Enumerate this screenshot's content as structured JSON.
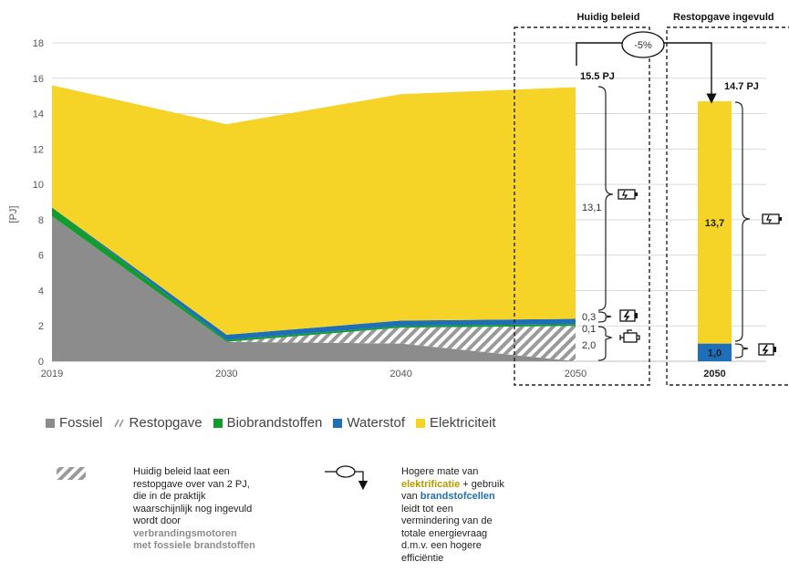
{
  "chart_data": {
    "type": "area",
    "title": "",
    "xlabel": "",
    "ylabel": "[PJ]",
    "ylim": [
      0,
      18
    ],
    "yticks": [
      0,
      2,
      4,
      6,
      8,
      10,
      12,
      14,
      16,
      18
    ],
    "x": [
      "2019",
      "2030",
      "2040",
      "2050"
    ],
    "stacked": true,
    "grid": true,
    "legend_position": "bottom",
    "series": [
      {
        "name": "Fossiel",
        "color": "#8c8c8c",
        "values": [
          8.2,
          1.1,
          1.0,
          0.0
        ]
      },
      {
        "name": "Restopgave",
        "color": "hatch",
        "values": [
          0.0,
          0.0,
          0.9,
          2.0
        ]
      },
      {
        "name": "Biobrandstoffen",
        "color": "#129c2e",
        "values": [
          0.5,
          0.1,
          0.1,
          0.1
        ]
      },
      {
        "name": "Waterstof",
        "color": "#1f6fb8",
        "values": [
          0.0,
          0.3,
          0.3,
          0.3
        ]
      },
      {
        "name": "Elektriciteit",
        "color": "#f5d327",
        "values": [
          6.9,
          11.9,
          12.8,
          13.1
        ]
      }
    ],
    "bar": {
      "category": "2050",
      "segments": [
        {
          "name": "Waterstof",
          "value": 1.0,
          "label": "1,0"
        },
        {
          "name": "Elektriciteit",
          "value": 13.7,
          "label": "13,7"
        }
      ]
    }
  },
  "annotations": {
    "header_current": "Huidig beleid",
    "header_filled": "Restopgave ingevuld",
    "reduction": "-5%",
    "total_current": "15.5 PJ",
    "total_filled": "14.7 PJ",
    "seg_elec": "13,1",
    "seg_h2": "0,3",
    "seg_bio": "0,1",
    "seg_rest": "2,0",
    "bar_year": "2050"
  },
  "legend": {
    "fossiel": "Fossiel",
    "restopgave": "Restopgave",
    "bio": "Biobrandstoffen",
    "waterstof": "Waterstof",
    "elektriciteit": "Elektriciteit"
  },
  "notes": {
    "left": {
      "p1": "Huidig beleid laat een restopgave over van 2 PJ, die in de praktijk waarschijnlijk nog ingevuld wordt door ",
      "b1": "verbrandingsmotoren met fossiele brandstoffen"
    },
    "right": {
      "p1": "Hogere mate van ",
      "b1": "elektrificatie",
      "p2": " + gebruik van ",
      "b2": "brandstofcellen",
      "p3": " leidt tot een vermindering van de totale energievraag d.m.v. een hogere efficiëntie"
    }
  },
  "colors": {
    "fossiel": "#8c8c8c",
    "bio": "#129c2e",
    "waterstof": "#1f6fb8",
    "elektriciteit": "#f5d327",
    "grid": "#d9d9d9"
  }
}
